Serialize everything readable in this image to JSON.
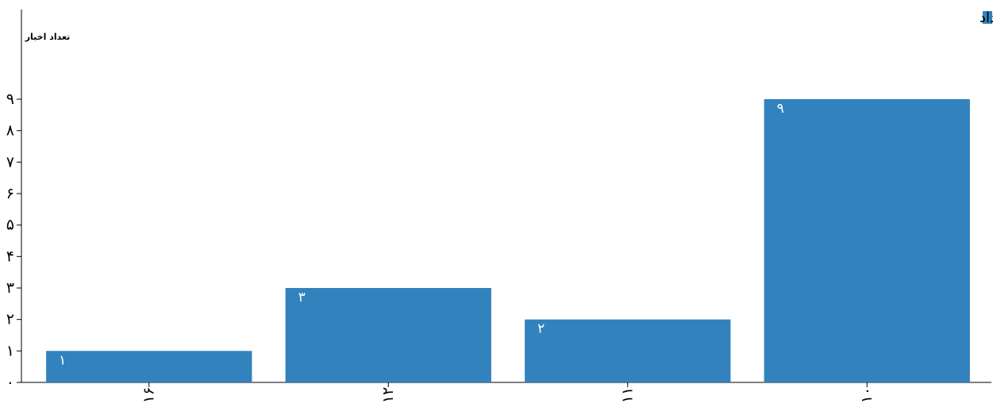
{
  "chart_data": {
    "type": "bar",
    "title": "",
    "xlabel": "",
    "ylabel": "تعداد اخبار",
    "categories": [
      "۱۶",
      "۱۲",
      "۱۱",
      "۱۰"
    ],
    "series": [
      {
        "name": "تعداد",
        "values": [
          1,
          3,
          2,
          9
        ],
        "value_labels": [
          "۱",
          "۳",
          "۲",
          "۹"
        ]
      }
    ],
    "ylim": [
      0,
      9
    ],
    "y_ticks": [
      0,
      1,
      2,
      3,
      4,
      5,
      6,
      7,
      8,
      9
    ],
    "y_tick_labels": [
      "۰",
      "۱",
      "۲",
      "۳",
      "۴",
      "۵",
      "۶",
      "۷",
      "۸",
      "۹"
    ],
    "grid": false,
    "legend_position": "top-right",
    "bar_color": "#3282be"
  }
}
